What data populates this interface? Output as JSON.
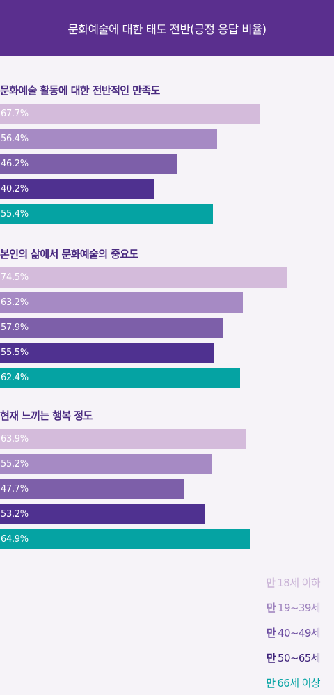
{
  "header": {
    "title": "문화예술에 대한 태도 전반(긍정 응답 비율)"
  },
  "colors": {
    "header_bg": "#5a2f8e",
    "series": [
      "#d4bbdb",
      "#a68ac4",
      "#7d5fa9",
      "#4f3190",
      "#05a3a3"
    ],
    "legend_text": [
      "#c9b3d6",
      "#9b7fbc",
      "#6b4ba0",
      "#3d2179",
      "#05a3a3"
    ]
  },
  "chart_data": {
    "type": "bar",
    "orientation": "horizontal",
    "title": "문화예술에 대한 태도 전반(긍정 응답 비율)",
    "xlim": [
      0,
      100
    ],
    "legend_position": "bottom-right",
    "categories": [
      "문화예술 활동에 대한 전반적인 만족도",
      "본인의 삶에서 문화예술의 중요도",
      "현재 느끼는 행복 정도"
    ],
    "series": [
      {
        "name": "만 18세 이하",
        "values": [
          67.7,
          74.5,
          63.9
        ],
        "labels": [
          "67.7%",
          "74.5%",
          "63.9%"
        ]
      },
      {
        "name": "만 19~39세",
        "values": [
          56.4,
          63.2,
          55.2
        ],
        "labels": [
          "56.4%",
          "63.2%",
          "55.2%"
        ]
      },
      {
        "name": "만 40~49세",
        "values": [
          46.2,
          57.9,
          47.7
        ],
        "labels": [
          "46.2%",
          "57.9%",
          "47.7%"
        ]
      },
      {
        "name": "만 50~65세",
        "values": [
          40.2,
          55.5,
          53.2
        ],
        "labels": [
          "40.2%",
          "55.5%",
          "53.2%"
        ]
      },
      {
        "name": "만 66세 이상",
        "values": [
          55.4,
          62.4,
          64.9
        ],
        "labels": [
          "55.4%",
          "62.4%",
          "64.9%"
        ]
      }
    ]
  },
  "legend": [
    {
      "prefix": "만",
      "rest": "18세 이하"
    },
    {
      "prefix": "만",
      "rest": "19~39세"
    },
    {
      "prefix": "만",
      "rest": "40~49세"
    },
    {
      "prefix": "만",
      "rest": "50~65세"
    },
    {
      "prefix": "만",
      "rest": "66세 이상"
    }
  ]
}
